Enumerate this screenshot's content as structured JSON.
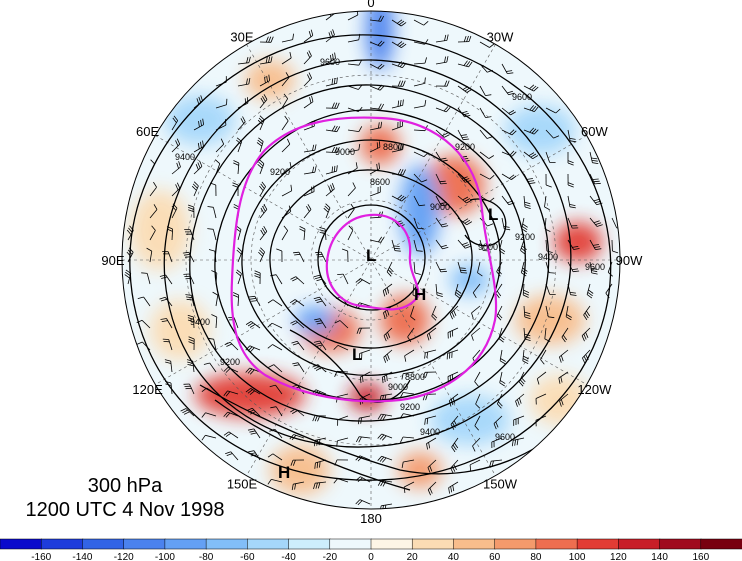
{
  "caption": {
    "level": "300 hPa",
    "time": "1200 UTC 4 Nov 1998"
  },
  "longitude_labels": [
    {
      "text": "0",
      "deg": 0
    },
    {
      "text": "30W",
      "deg": -30
    },
    {
      "text": "60W",
      "deg": -60
    },
    {
      "text": "90W",
      "deg": -90
    },
    {
      "text": "120W",
      "deg": -120
    },
    {
      "text": "150W",
      "deg": -150
    },
    {
      "text": "180",
      "deg": 180
    },
    {
      "text": "150E",
      "deg": 150
    },
    {
      "text": "120E",
      "deg": 120
    },
    {
      "text": "90E",
      "deg": 90
    },
    {
      "text": "60E",
      "deg": 60
    },
    {
      "text": "30E",
      "deg": 30
    }
  ],
  "pressure_centers": [
    {
      "text": "L",
      "name": "low-center-pole"
    },
    {
      "text": "L",
      "name": "low-center-canada"
    },
    {
      "text": "L",
      "name": "low-center-siberia"
    },
    {
      "text": "H",
      "name": "high-center-arctic"
    },
    {
      "text": "H",
      "name": "high-center-pacific"
    }
  ],
  "contour_labels": [
    "9600",
    "9400",
    "9200",
    "9000",
    "8800",
    "8600",
    "9000",
    "9200",
    "9400",
    "9600",
    "9200",
    "9000",
    "8800",
    "9000",
    "9200",
    "9400",
    "9600",
    "9400",
    "9200",
    "9600"
  ],
  "colorbar": {
    "ticks": [
      "-160",
      "-140",
      "-120",
      "-100",
      "-80",
      "-60",
      "-40",
      "-20",
      "0",
      "20",
      "40",
      "60",
      "80",
      "100",
      "120",
      "140",
      "160"
    ],
    "colors": [
      "#0a0acc",
      "#1e3cdc",
      "#3264e6",
      "#4b82ee",
      "#64a0f4",
      "#82bef8",
      "#a5d7fa",
      "#cdeefc",
      "#eef8fc",
      "#fdf5e6",
      "#fbdcb4",
      "#f8bd8c",
      "#f49a6c",
      "#ee6e50",
      "#e23c34",
      "#c81e28",
      "#a00a1e",
      "#78000f"
    ]
  },
  "overlays": {
    "magenta_circle_color": "#e020e0",
    "contour_color": "#000000"
  }
}
